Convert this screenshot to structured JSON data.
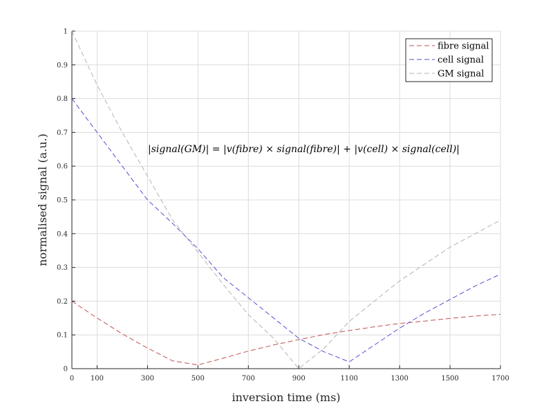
{
  "chart_data": {
    "type": "line",
    "xlabel": "inversion time (ms)",
    "ylabel": "normalised signal (a.u.)",
    "xlim": [
      0,
      1700
    ],
    "ylim": [
      0,
      1
    ],
    "x_ticks": [
      0,
      100,
      300,
      500,
      700,
      900,
      1100,
      1300,
      1500,
      1700
    ],
    "y_ticks": [
      0,
      0.1,
      0.2,
      0.3,
      0.4,
      0.5,
      0.6,
      0.7,
      0.8,
      0.9,
      1
    ],
    "grid": true,
    "legend_position": "top-right",
    "annotation": "|signal(GM)| = |v(fibre) × signal(fibre)| + |v(cell) × signal(cell)|",
    "x": [
      0,
      100,
      200,
      300,
      400,
      500,
      600,
      700,
      800,
      900,
      1000,
      1100,
      1200,
      1300,
      1400,
      1500,
      1600,
      1700
    ],
    "series": [
      {
        "name": "fibre signal",
        "color": "#c0504d",
        "values": [
          0.2,
          0.15,
          0.103,
          0.061,
          0.023,
          0.011,
          0.031,
          0.052,
          0.07,
          0.086,
          0.101,
          0.113,
          0.124,
          0.134,
          0.141,
          0.149,
          0.156,
          0.161
        ]
      },
      {
        "name": "cell signal",
        "color": "#4f4fd0",
        "values": [
          0.8,
          0.7,
          0.6,
          0.5,
          0.43,
          0.355,
          0.27,
          0.21,
          0.15,
          0.09,
          0.05,
          0.02,
          0.07,
          0.12,
          0.165,
          0.205,
          0.245,
          0.28
        ]
      },
      {
        "name": "GM signal",
        "color": "#b3b3b3",
        "values": [
          1.0,
          0.84,
          0.7,
          0.57,
          0.44,
          0.345,
          0.25,
          0.16,
          0.09,
          0.0,
          0.06,
          0.14,
          0.2,
          0.26,
          0.31,
          0.36,
          0.4,
          0.44
        ]
      }
    ]
  }
}
